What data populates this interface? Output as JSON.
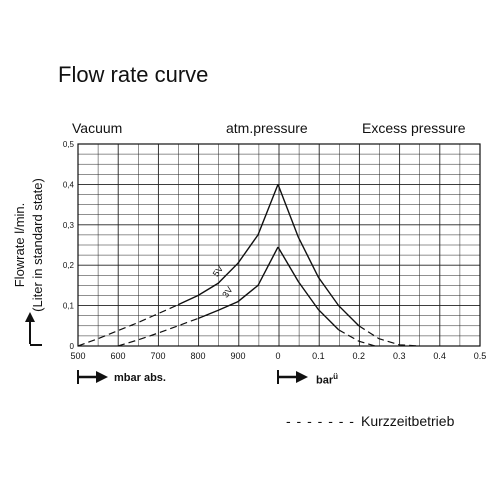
{
  "chart_data": {
    "type": "line",
    "title": "Flow rate curve",
    "ylabel_line1": "Flowrate l/min.",
    "ylabel_line2": "(Liter in standard state)",
    "region_labels": [
      "Vacuum",
      "atm.pressure",
      "Excess pressure"
    ],
    "x_left_ticks": [
      "500",
      "600",
      "700",
      "800",
      "900",
      "0"
    ],
    "x_right_ticks": [
      "0.1",
      "0.2",
      "0.3",
      "0.4",
      "0.5"
    ],
    "x_left_unit": "mbar abs.",
    "x_right_unit": "bar",
    "x_right_unit_sup": "ü",
    "y_ticks": [
      "0",
      "0,1",
      "0,2",
      "0,3",
      "0,4",
      "0,5"
    ],
    "ylim": [
      0,
      0.5
    ],
    "grid": true,
    "series": [
      {
        "name": "5V",
        "vacuum_points": [
          [
            500,
            0.0
          ],
          [
            550,
            0.018
          ],
          [
            600,
            0.038
          ],
          [
            650,
            0.058
          ],
          [
            700,
            0.08
          ],
          [
            750,
            0.102
          ],
          [
            800,
            0.125
          ],
          [
            850,
            0.155
          ],
          [
            900,
            0.205
          ],
          [
            950,
            0.275
          ],
          [
            1000,
            0.4
          ]
        ],
        "pressure_points": [
          [
            0.0,
            0.4
          ],
          [
            0.05,
            0.27
          ],
          [
            0.1,
            0.17
          ],
          [
            0.15,
            0.1
          ],
          [
            0.2,
            0.05
          ],
          [
            0.25,
            0.018
          ],
          [
            0.3,
            0.003
          ],
          [
            0.35,
            0.0
          ]
        ]
      },
      {
        "name": "3V",
        "vacuum_points": [
          [
            600,
            0.0
          ],
          [
            650,
            0.015
          ],
          [
            700,
            0.032
          ],
          [
            750,
            0.05
          ],
          [
            800,
            0.068
          ],
          [
            850,
            0.088
          ],
          [
            900,
            0.11
          ],
          [
            950,
            0.15
          ],
          [
            1000,
            0.245
          ]
        ],
        "pressure_points": [
          [
            0.0,
            0.245
          ],
          [
            0.05,
            0.16
          ],
          [
            0.1,
            0.09
          ],
          [
            0.15,
            0.04
          ],
          [
            0.2,
            0.012
          ],
          [
            0.24,
            0.0
          ]
        ]
      }
    ],
    "legend_text": "Kurzzeitbetrieb"
  }
}
